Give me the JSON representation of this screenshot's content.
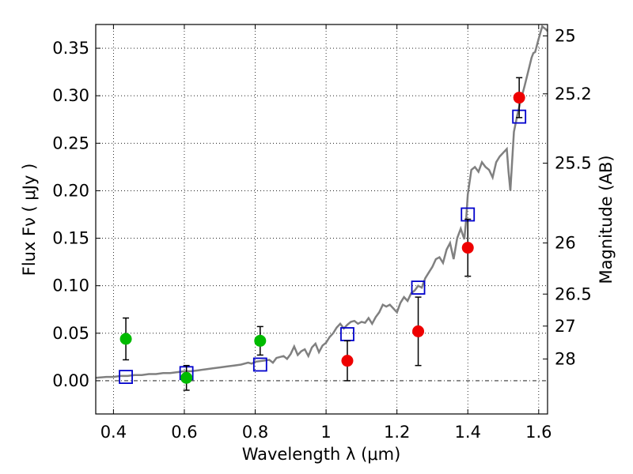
{
  "chart_data": {
    "type": "scatter",
    "xlabel": "Wavelength  λ (μm)",
    "ylabel": "Flux  Fν  ( μJy )",
    "y2label": "Magnitude (AB)",
    "xlim": [
      0.35,
      1.625
    ],
    "ylim": [
      -0.035,
      0.375
    ],
    "grid": true,
    "x_ticks": [
      {
        "value": 0.4,
        "label": "0.4"
      },
      {
        "value": 0.6,
        "label": "0.6"
      },
      {
        "value": 0.8,
        "label": "0.8"
      },
      {
        "value": 1.0,
        "label": "1"
      },
      {
        "value": 1.2,
        "label": "1.2"
      },
      {
        "value": 1.4,
        "label": "1.4"
      },
      {
        "value": 1.6,
        "label": "1.6"
      }
    ],
    "y_ticks": [
      {
        "value": 0.0,
        "label": "0.00"
      },
      {
        "value": 0.05,
        "label": "0.05"
      },
      {
        "value": 0.1,
        "label": "0.10"
      },
      {
        "value": 0.15,
        "label": "0.15"
      },
      {
        "value": 0.2,
        "label": "0.20"
      },
      {
        "value": 0.25,
        "label": "0.25"
      },
      {
        "value": 0.3,
        "label": "0.30"
      },
      {
        "value": 0.35,
        "label": "0.35"
      }
    ],
    "mag_ticks": [
      {
        "label": "25",
        "flux": 0.363
      },
      {
        "label": "25.2",
        "flux": 0.302
      },
      {
        "label": "25.5",
        "flux": 0.229
      },
      {
        "label": "26",
        "flux": 0.145
      },
      {
        "label": "26.5",
        "flux": 0.0912
      },
      {
        "label": "27",
        "flux": 0.0575
      },
      {
        "label": "28",
        "flux": 0.0229
      }
    ],
    "series": [
      {
        "kind": "spectrum",
        "color": "#808080",
        "points": [
          [
            0.35,
            0.003
          ],
          [
            0.38,
            0.004
          ],
          [
            0.4,
            0.004
          ],
          [
            0.42,
            0.005
          ],
          [
            0.44,
            0.005
          ],
          [
            0.46,
            0.006
          ],
          [
            0.48,
            0.006
          ],
          [
            0.5,
            0.007
          ],
          [
            0.52,
            0.007
          ],
          [
            0.54,
            0.008
          ],
          [
            0.56,
            0.008
          ],
          [
            0.58,
            0.009
          ],
          [
            0.6,
            0.01
          ],
          [
            0.62,
            0.01
          ],
          [
            0.64,
            0.011
          ],
          [
            0.66,
            0.012
          ],
          [
            0.68,
            0.013
          ],
          [
            0.7,
            0.014
          ],
          [
            0.72,
            0.015
          ],
          [
            0.74,
            0.016
          ],
          [
            0.76,
            0.017
          ],
          [
            0.78,
            0.019
          ],
          [
            0.79,
            0.018
          ],
          [
            0.8,
            0.02
          ],
          [
            0.82,
            0.021
          ],
          [
            0.84,
            0.022
          ],
          [
            0.85,
            0.019
          ],
          [
            0.86,
            0.024
          ],
          [
            0.88,
            0.026
          ],
          [
            0.89,
            0.023
          ],
          [
            0.9,
            0.028
          ],
          [
            0.91,
            0.036
          ],
          [
            0.92,
            0.027
          ],
          [
            0.93,
            0.031
          ],
          [
            0.94,
            0.033
          ],
          [
            0.95,
            0.026
          ],
          [
            0.96,
            0.035
          ],
          [
            0.97,
            0.039
          ],
          [
            0.98,
            0.03
          ],
          [
            0.99,
            0.037
          ],
          [
            1.0,
            0.04
          ],
          [
            1.01,
            0.046
          ],
          [
            1.02,
            0.05
          ],
          [
            1.03,
            0.056
          ],
          [
            1.04,
            0.06
          ],
          [
            1.05,
            0.055
          ],
          [
            1.06,
            0.059
          ],
          [
            1.07,
            0.062
          ],
          [
            1.08,
            0.063
          ],
          [
            1.09,
            0.06
          ],
          [
            1.1,
            0.062
          ],
          [
            1.11,
            0.061
          ],
          [
            1.12,
            0.066
          ],
          [
            1.13,
            0.06
          ],
          [
            1.14,
            0.067
          ],
          [
            1.15,
            0.072
          ],
          [
            1.16,
            0.08
          ],
          [
            1.17,
            0.078
          ],
          [
            1.18,
            0.08
          ],
          [
            1.19,
            0.076
          ],
          [
            1.2,
            0.072
          ],
          [
            1.21,
            0.082
          ],
          [
            1.22,
            0.088
          ],
          [
            1.23,
            0.084
          ],
          [
            1.24,
            0.092
          ],
          [
            1.25,
            0.095
          ],
          [
            1.26,
            0.1
          ],
          [
            1.27,
            0.098
          ],
          [
            1.28,
            0.108
          ],
          [
            1.29,
            0.114
          ],
          [
            1.3,
            0.12
          ],
          [
            1.31,
            0.128
          ],
          [
            1.32,
            0.13
          ],
          [
            1.33,
            0.124
          ],
          [
            1.34,
            0.138
          ],
          [
            1.35,
            0.145
          ],
          [
            1.36,
            0.128
          ],
          [
            1.37,
            0.15
          ],
          [
            1.38,
            0.16
          ],
          [
            1.39,
            0.149
          ],
          [
            1.395,
            0.168
          ],
          [
            1.4,
            0.196
          ],
          [
            1.41,
            0.222
          ],
          [
            1.42,
            0.225
          ],
          [
            1.43,
            0.22
          ],
          [
            1.44,
            0.23
          ],
          [
            1.45,
            0.225
          ],
          [
            1.46,
            0.222
          ],
          [
            1.47,
            0.214
          ],
          [
            1.48,
            0.23
          ],
          [
            1.49,
            0.236
          ],
          [
            1.5,
            0.24
          ],
          [
            1.51,
            0.244
          ],
          [
            1.515,
            0.22
          ],
          [
            1.52,
            0.2
          ],
          [
            1.53,
            0.262
          ],
          [
            1.54,
            0.28
          ],
          [
            1.55,
            0.296
          ],
          [
            1.56,
            0.31
          ],
          [
            1.57,
            0.325
          ],
          [
            1.58,
            0.34
          ],
          [
            1.585,
            0.345
          ],
          [
            1.59,
            0.346
          ],
          [
            1.6,
            0.36
          ],
          [
            1.61,
            0.373
          ],
          [
            1.62,
            0.37
          ],
          [
            1.625,
            0.368
          ]
        ]
      },
      {
        "kind": "model-photometry",
        "marker": "square",
        "color": "#0000cc",
        "points": [
          [
            0.435,
            0.004
          ],
          [
            0.606,
            0.008
          ],
          [
            0.814,
            0.017
          ],
          [
            1.06,
            0.049
          ],
          [
            1.26,
            0.098
          ],
          [
            1.4,
            0.175
          ],
          [
            1.545,
            0.278
          ]
        ]
      },
      {
        "kind": "photometry",
        "marker": "circle",
        "color": "#00bb00",
        "points": [
          {
            "x": 0.435,
            "y": 0.044,
            "err": 0.022
          },
          {
            "x": 0.606,
            "y": 0.003,
            "err": 0.013
          },
          {
            "x": 0.814,
            "y": 0.042,
            "err": 0.015
          }
        ]
      },
      {
        "kind": "photometry",
        "marker": "circle",
        "color": "#ee0000",
        "points": [
          {
            "x": 1.06,
            "y": 0.021,
            "err": 0.021
          },
          {
            "x": 1.26,
            "y": 0.052,
            "err": 0.036
          },
          {
            "x": 1.4,
            "y": 0.14,
            "err": 0.03
          },
          {
            "x": 1.545,
            "y": 0.298,
            "err": 0.021
          }
        ]
      }
    ]
  }
}
